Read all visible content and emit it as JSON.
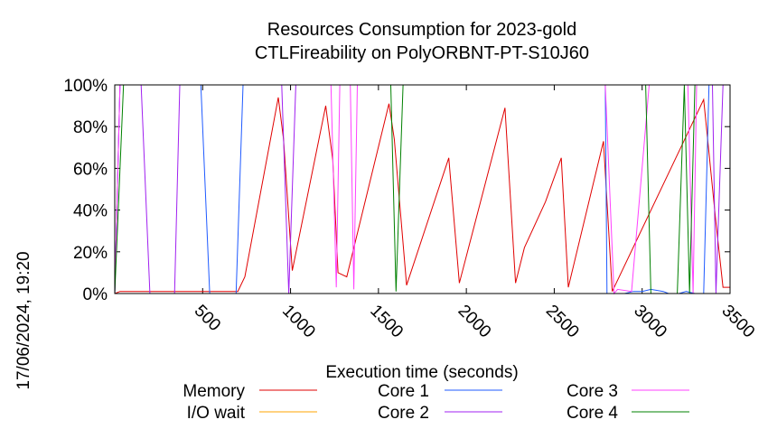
{
  "chart_data": {
    "type": "line",
    "title_line1": "Resources Consumption for 2023-gold",
    "title_line2": "CTLFireability on PolyORBNT-PT-S10J60",
    "xlabel": "Execution time (seconds)",
    "ylabel": "",
    "timestamp": "17/06/2024, 19:20",
    "xlim": [
      0,
      3500
    ],
    "ylim": [
      0,
      100
    ],
    "xticks": [
      500,
      1000,
      1500,
      2000,
      2500,
      3000,
      3500
    ],
    "xtick_labels": [
      "500",
      "1000",
      "1500",
      "2000",
      "2500",
      "3000",
      "3500"
    ],
    "yticks": [
      0,
      20,
      40,
      60,
      80,
      100
    ],
    "ytick_labels": [
      "0%",
      "20%",
      "40%",
      "60%",
      "80%",
      "100%"
    ],
    "grid": false,
    "legend_position": "bottom",
    "series": [
      {
        "name": "Memory",
        "color": "#e00000",
        "points": [
          [
            0,
            0
          ],
          [
            30,
            1
          ],
          [
            200,
            1
          ],
          [
            700,
            1
          ],
          [
            740,
            8
          ],
          [
            930,
            94
          ],
          [
            960,
            74
          ],
          [
            1010,
            11
          ],
          [
            1200,
            90
          ],
          [
            1240,
            64
          ],
          [
            1270,
            10
          ],
          [
            1320,
            8
          ],
          [
            1560,
            91
          ],
          [
            1590,
            74
          ],
          [
            1660,
            4
          ],
          [
            1900,
            65
          ],
          [
            1960,
            5
          ],
          [
            2220,
            89
          ],
          [
            2280,
            5
          ],
          [
            2330,
            22
          ],
          [
            2450,
            44
          ],
          [
            2540,
            65
          ],
          [
            2580,
            3
          ],
          [
            2780,
            73
          ],
          [
            2830,
            1
          ],
          [
            3350,
            93
          ],
          [
            3420,
            34
          ],
          [
            3460,
            3
          ],
          [
            3500,
            3
          ]
        ]
      },
      {
        "name": "I/O wait",
        "color": "#ffa500",
        "points": [
          [
            0,
            0
          ],
          [
            3500,
            0
          ]
        ]
      },
      {
        "name": "Core 1",
        "color": "#1f5aff",
        "points": [
          [
            0,
            0
          ],
          [
            30,
            100
          ],
          [
            490,
            100
          ],
          [
            540,
            0
          ],
          [
            690,
            0
          ],
          [
            730,
            100
          ],
          [
            2790,
            100
          ],
          [
            2800,
            0
          ],
          [
            2900,
            0
          ],
          [
            2950,
            1
          ],
          [
            3000,
            1
          ],
          [
            3050,
            2
          ],
          [
            3120,
            1
          ],
          [
            3150,
            0
          ],
          [
            3210,
            0
          ],
          [
            3250,
            1
          ],
          [
            3300,
            0
          ],
          [
            3350,
            0
          ],
          [
            3380,
            100
          ],
          [
            3500,
            100
          ]
        ]
      },
      {
        "name": "Core 2",
        "color": "#a020f0",
        "points": [
          [
            0,
            0
          ],
          [
            30,
            100
          ],
          [
            150,
            100
          ],
          [
            200,
            0
          ],
          [
            340,
            0
          ],
          [
            370,
            100
          ],
          [
            950,
            100
          ],
          [
            990,
            0
          ],
          [
            1030,
            100
          ],
          [
            3400,
            100
          ],
          [
            3420,
            0
          ],
          [
            3460,
            100
          ],
          [
            3500,
            100
          ]
        ]
      },
      {
        "name": "Core 3",
        "color": "#ff40ff",
        "points": [
          [
            0,
            0
          ],
          [
            30,
            100
          ],
          [
            1230,
            100
          ],
          [
            1260,
            3
          ],
          [
            1280,
            100
          ],
          [
            1340,
            100
          ],
          [
            1360,
            2
          ],
          [
            1380,
            100
          ],
          [
            2790,
            100
          ],
          [
            2840,
            0
          ],
          [
            2860,
            2
          ],
          [
            2940,
            1
          ],
          [
            3040,
            100
          ],
          [
            3260,
            100
          ],
          [
            3290,
            0
          ],
          [
            3310,
            100
          ],
          [
            3500,
            100
          ]
        ]
      },
      {
        "name": "Core 4",
        "color": "#008000",
        "points": [
          [
            0,
            0
          ],
          [
            50,
            100
          ],
          [
            1570,
            100
          ],
          [
            1600,
            1
          ],
          [
            1640,
            100
          ],
          [
            3020,
            100
          ],
          [
            3050,
            0
          ],
          [
            3200,
            0
          ],
          [
            3240,
            100
          ],
          [
            3270,
            0
          ],
          [
            3300,
            100
          ],
          [
            3500,
            100
          ]
        ]
      }
    ]
  }
}
